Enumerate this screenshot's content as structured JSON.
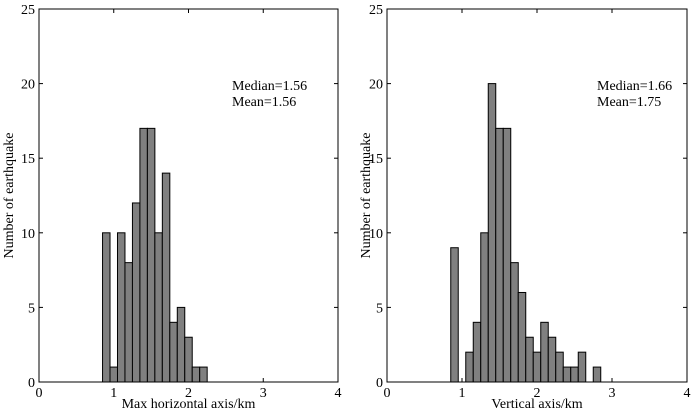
{
  "colors": {
    "bar_fill": "#808080",
    "bar_stroke": "#000000",
    "axis": "#000000"
  },
  "chart_data": [
    {
      "type": "bar",
      "title": "",
      "xlabel": "Max horizontal axis/km",
      "ylabel": "Number of earthquake",
      "xlim": [
        0,
        4
      ],
      "ylim": [
        0,
        25
      ],
      "xticks": [
        "0",
        "1",
        "2",
        "3",
        "4"
      ],
      "yticks": [
        "0",
        "5",
        "10",
        "15",
        "20",
        "25"
      ],
      "bin_width": 0.1,
      "bins": [
        {
          "x": 0.9,
          "value": 10
        },
        {
          "x": 1.0,
          "value": 1
        },
        {
          "x": 1.1,
          "value": 10
        },
        {
          "x": 1.2,
          "value": 8
        },
        {
          "x": 1.3,
          "value": 12
        },
        {
          "x": 1.4,
          "value": 17
        },
        {
          "x": 1.5,
          "value": 17
        },
        {
          "x": 1.6,
          "value": 10
        },
        {
          "x": 1.7,
          "value": 14
        },
        {
          "x": 1.8,
          "value": 4
        },
        {
          "x": 1.9,
          "value": 5
        },
        {
          "x": 2.0,
          "value": 3
        },
        {
          "x": 2.1,
          "value": 1
        },
        {
          "x": 2.2,
          "value": 1
        }
      ],
      "annotations": [
        "Median=1.56",
        "Mean=1.56"
      ]
    },
    {
      "type": "bar",
      "title": "",
      "xlabel": "Vertical axis/km",
      "ylabel": "Number of earthquake",
      "xlim": [
        0,
        4
      ],
      "ylim": [
        0,
        25
      ],
      "xticks": [
        "0",
        "1",
        "2",
        "3",
        "4"
      ],
      "yticks": [
        "0",
        "5",
        "10",
        "15",
        "20",
        "25"
      ],
      "bin_width": 0.1,
      "bins": [
        {
          "x": 0.9,
          "value": 9
        },
        {
          "x": 1.1,
          "value": 2
        },
        {
          "x": 1.2,
          "value": 4
        },
        {
          "x": 1.3,
          "value": 10
        },
        {
          "x": 1.4,
          "value": 20
        },
        {
          "x": 1.5,
          "value": 17
        },
        {
          "x": 1.6,
          "value": 17
        },
        {
          "x": 1.7,
          "value": 8
        },
        {
          "x": 1.8,
          "value": 6
        },
        {
          "x": 1.9,
          "value": 3
        },
        {
          "x": 2.0,
          "value": 2
        },
        {
          "x": 2.1,
          "value": 4
        },
        {
          "x": 2.2,
          "value": 3
        },
        {
          "x": 2.3,
          "value": 2
        },
        {
          "x": 2.4,
          "value": 1
        },
        {
          "x": 2.5,
          "value": 1
        },
        {
          "x": 2.6,
          "value": 2
        },
        {
          "x": 2.8,
          "value": 1
        }
      ],
      "annotations": [
        "Median=1.66",
        "Mean=1.75"
      ]
    }
  ]
}
